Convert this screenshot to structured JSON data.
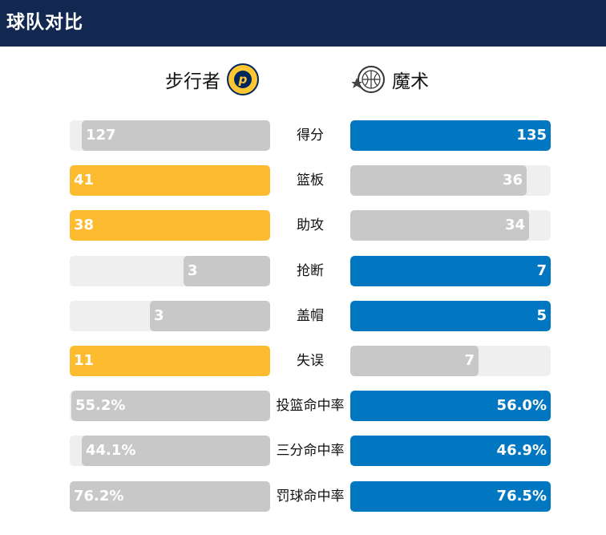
{
  "header": {
    "title": "球队对比"
  },
  "teams": {
    "home": {
      "name": "步行者",
      "logo_icon": "pacers-logo-icon",
      "win_color": "#fdbb30"
    },
    "away": {
      "name": "魔术",
      "logo_icon": "magic-logo-icon",
      "win_color": "#0077c0"
    }
  },
  "colors": {
    "loser_bar": "#c8c8c8",
    "track": "#efefef",
    "header_bg": "#132850"
  },
  "chart_data": {
    "type": "bar",
    "title": "球队对比",
    "categories": [
      "得分",
      "篮板",
      "助攻",
      "抢断",
      "盖帽",
      "失误",
      "投篮命中率",
      "三分命中率",
      "罚球命中率"
    ],
    "series": [
      {
        "name": "步行者",
        "values": [
          127,
          41,
          38,
          3,
          3,
          11,
          55.2,
          44.1,
          76.2
        ],
        "labels": [
          "127",
          "41",
          "38",
          "3",
          "3",
          "11",
          "55.2%",
          "44.1%",
          "76.2%"
        ]
      },
      {
        "name": "魔术",
        "values": [
          135,
          36,
          34,
          7,
          5,
          7,
          56.0,
          46.9,
          76.5
        ],
        "labels": [
          "135",
          "36",
          "34",
          "7",
          "5",
          "7",
          "56.0%",
          "46.9%",
          "76.5%"
        ]
      }
    ],
    "winner": [
      "away",
      "home",
      "home",
      "away",
      "away",
      "home",
      "away",
      "away",
      "away"
    ],
    "fill_fraction": {
      "home": [
        0.94,
        1.0,
        1.0,
        0.43,
        0.6,
        1.0,
        0.99,
        0.94,
        1.0
      ],
      "away": [
        1.0,
        0.88,
        0.89,
        1.0,
        1.0,
        0.64,
        1.0,
        1.0,
        1.0
      ]
    }
  }
}
